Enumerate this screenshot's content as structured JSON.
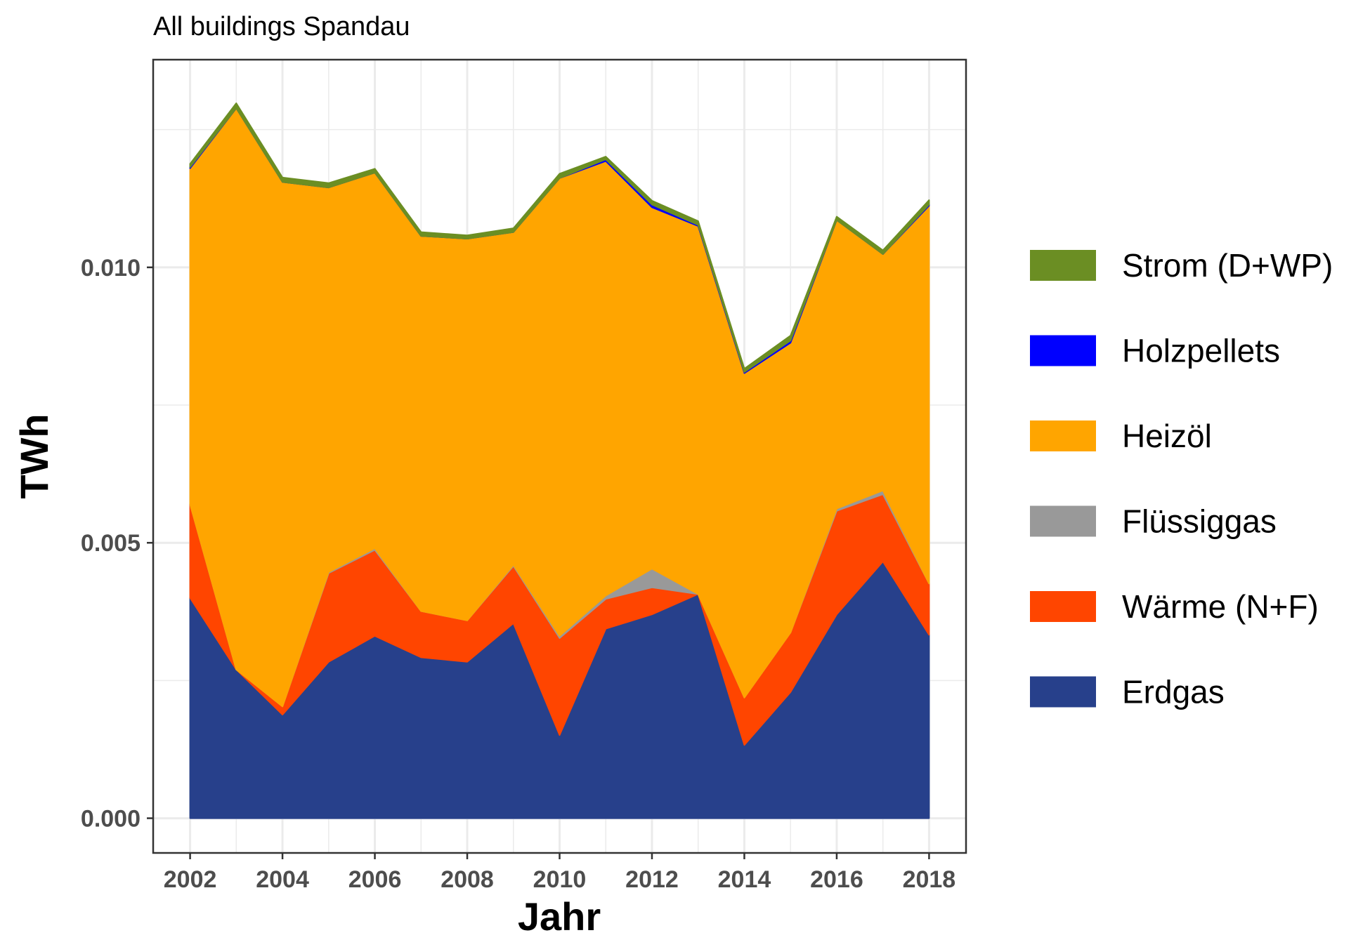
{
  "chart_data": {
    "type": "area",
    "title": "All buildings Spandau",
    "xlabel": "Jahr",
    "ylabel": "TWh",
    "x": [
      2002,
      2003,
      2004,
      2005,
      2006,
      2007,
      2008,
      2009,
      2010,
      2011,
      2012,
      2013,
      2014,
      2015,
      2016,
      2017,
      2018
    ],
    "xlim": [
      2001.2,
      2018.8
    ],
    "ylim": [
      -0.00063,
      0.01377
    ],
    "x_ticks": [
      2002,
      2004,
      2006,
      2008,
      2010,
      2012,
      2014,
      2016,
      2018
    ],
    "x_tick_labels": [
      "2002",
      "2004",
      "2006",
      "2008",
      "2010",
      "2012",
      "2014",
      "2016",
      "2018"
    ],
    "y_ticks": [
      0.0,
      0.005,
      0.01
    ],
    "y_tick_labels": [
      "0.000",
      "0.005",
      "0.010"
    ],
    "grid": true,
    "legend_position": "right",
    "stacking": "bottom-to-top",
    "series": [
      {
        "name": "Erdgas",
        "color": "#27408B",
        "values": [
          0.004,
          0.0027,
          0.00188,
          0.00284,
          0.00331,
          0.00292,
          0.00284,
          0.00354,
          0.00151,
          0.00344,
          0.0037,
          0.00407,
          0.00133,
          0.00229,
          0.0037,
          0.00466,
          0.00333
        ]
      },
      {
        "name": "Wärme (N+F)",
        "color": "#FF4500",
        "values": [
          0.0017,
          0.0,
          0.00015,
          0.00161,
          0.00156,
          0.00084,
          0.00075,
          0.00104,
          0.00176,
          0.00054,
          0.00049,
          0.0,
          0.00086,
          0.00108,
          0.00188,
          0.00122,
          0.00093
        ]
      },
      {
        "name": "Flüssiggas",
        "color": "#999999",
        "values": [
          0.0,
          0.0,
          0.0,
          2e-05,
          3e-05,
          0.0,
          0.0,
          2e-05,
          4e-05,
          6e-05,
          0.00034,
          0.0,
          0.0,
          0.0,
          4e-05,
          7e-05,
          0.0
        ]
      },
      {
        "name": "Heizöl",
        "color": "#FFA500",
        "values": [
          0.0061,
          0.01019,
          0.00952,
          0.00698,
          0.00682,
          0.00681,
          0.00693,
          0.00604,
          0.00831,
          0.00789,
          0.00656,
          0.00668,
          0.00589,
          0.00526,
          0.00524,
          0.00429,
          0.00686
        ]
      },
      {
        "name": "Holzpellets",
        "color": "#0000FF",
        "values": [
          2e-05,
          0.0,
          0.0,
          0.0,
          0.0,
          0.0,
          0.0,
          0.0,
          0.0,
          3e-05,
          5e-05,
          2e-05,
          2e-05,
          4e-05,
          0.0,
          0.0,
          2e-05
        ]
      },
      {
        "name": "Strom (D+WP)",
        "color": "#6B8E23",
        "values": [
          6e-05,
          9e-05,
          8e-05,
          8e-05,
          7e-05,
          7e-05,
          6e-05,
          7e-05,
          8e-05,
          5e-05,
          7e-05,
          7e-05,
          6e-05,
          9e-05,
          6e-05,
          7e-05,
          8e-05
        ]
      }
    ],
    "legend_order": [
      "Strom (D+WP)",
      "Holzpellets",
      "Heizöl",
      "Flüssiggas",
      "Wärme (N+F)",
      "Erdgas"
    ]
  }
}
